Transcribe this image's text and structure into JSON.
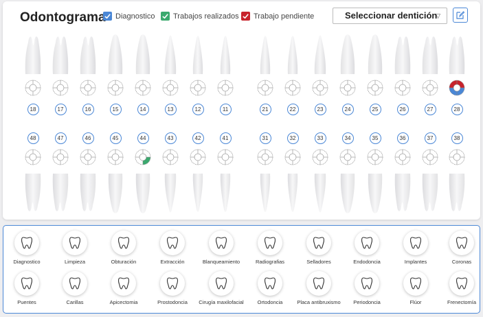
{
  "header": {
    "title": "Odontograma",
    "legend": [
      {
        "label": "Diagnostico",
        "color": "#4a87d6"
      },
      {
        "label": "Trabajos realizados",
        "color": "#3aa96e"
      },
      {
        "label": "Trabajo pendiente",
        "color": "#c8232c"
      }
    ],
    "select": {
      "value": "Seleccionar dentición",
      "caret": "▽"
    },
    "edit_icon": "edit-icon"
  },
  "upper_teeth": [
    {
      "num": "18",
      "marks": []
    },
    {
      "num": "17",
      "marks": []
    },
    {
      "num": "16",
      "marks": []
    },
    {
      "num": "15",
      "marks": []
    },
    {
      "num": "14",
      "marks": []
    },
    {
      "num": "13",
      "marks": []
    },
    {
      "num": "12",
      "marks": []
    },
    {
      "num": "11",
      "marks": []
    },
    {
      "num": "21",
      "marks": []
    },
    {
      "num": "22",
      "marks": []
    },
    {
      "num": "23",
      "marks": []
    },
    {
      "num": "24",
      "marks": []
    },
    {
      "num": "25",
      "marks": []
    },
    {
      "num": "26",
      "marks": []
    },
    {
      "num": "27",
      "marks": []
    },
    {
      "num": "28",
      "marks": [
        {
          "part": "top",
          "color": "#c8232c"
        },
        {
          "part": "right",
          "color": "#c8232c"
        },
        {
          "part": "left",
          "color": "#4a87d6"
        },
        {
          "part": "bottom",
          "color": "#4a87d6"
        }
      ]
    }
  ],
  "lower_teeth": [
    {
      "num": "48",
      "marks": []
    },
    {
      "num": "47",
      "marks": []
    },
    {
      "num": "46",
      "marks": []
    },
    {
      "num": "45",
      "marks": []
    },
    {
      "num": "44",
      "marks": [
        {
          "part": "bottom-right",
          "color": "#3aa96e"
        }
      ]
    },
    {
      "num": "43",
      "marks": []
    },
    {
      "num": "42",
      "marks": []
    },
    {
      "num": "41",
      "marks": []
    },
    {
      "num": "31",
      "marks": []
    },
    {
      "num": "32",
      "marks": []
    },
    {
      "num": "33",
      "marks": []
    },
    {
      "num": "34",
      "marks": []
    },
    {
      "num": "35",
      "marks": []
    },
    {
      "num": "36",
      "marks": []
    },
    {
      "num": "37",
      "marks": []
    },
    {
      "num": "38",
      "marks": []
    }
  ],
  "procedures_row1": [
    {
      "label": "Diagnostico",
      "icon": "diagnostico-icon"
    },
    {
      "label": "Limpieza",
      "icon": "limpieza-icon"
    },
    {
      "label": "Obturación",
      "icon": "obturacion-icon"
    },
    {
      "label": "Extracción",
      "icon": "extraccion-icon"
    },
    {
      "label": "Blanqueamiento",
      "icon": "blanqueamiento-icon"
    },
    {
      "label": "Radiografias",
      "icon": "radiografias-icon"
    },
    {
      "label": "Selladores",
      "icon": "selladores-icon"
    },
    {
      "label": "Endodoncia",
      "icon": "endodoncia-icon"
    },
    {
      "label": "Implantes",
      "icon": "implantes-icon"
    },
    {
      "label": "Coronas",
      "icon": "coronas-icon"
    }
  ],
  "procedures_row2": [
    {
      "label": "Puentes",
      "icon": "puentes-icon"
    },
    {
      "label": "Carillas",
      "icon": "carillas-icon"
    },
    {
      "label": "Apicectomia",
      "icon": "apicectomia-icon"
    },
    {
      "label": "Prostodoncia",
      "icon": "prostodoncia-icon"
    },
    {
      "label": "Cirugía maxilofacial",
      "icon": "cirugia-maxilofacial-icon"
    },
    {
      "label": "Ortodoncia",
      "icon": "ortodoncia-icon"
    },
    {
      "label": "Placa antibruxismo",
      "icon": "placa-antibruxismo-icon"
    },
    {
      "label": "Periodoncia",
      "icon": "periodoncia-icon"
    },
    {
      "label": "Flúor",
      "icon": "fluor-icon"
    },
    {
      "label": "Frenectomía",
      "icon": "frenectomia-icon"
    }
  ]
}
